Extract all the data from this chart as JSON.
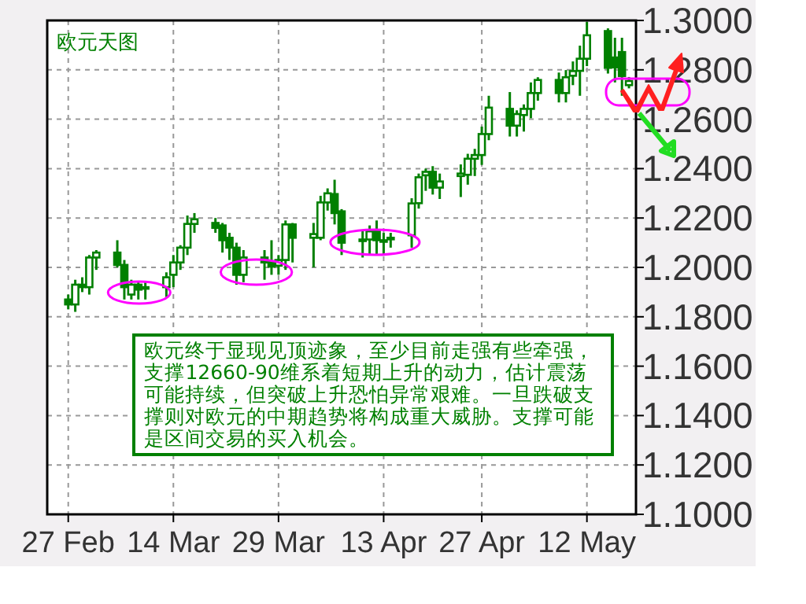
{
  "chart_data": {
    "type": "candlestick",
    "title": "欧元天图",
    "annotations": [
      "欧元终于显现见顶迹象，至少目前走强有些牵强，支撑12660-90维系着短期上升的动力，估计震荡可能持续，但突破上升恐怕异常艰难。一旦跌破支撑则对欧元的中期趋势将构成重大威胁。支撑可能是区间交易的买入机会。"
    ],
    "color": "#008000",
    "grid": true,
    "x": [
      "--02-27",
      "--02-28",
      "--03-01",
      "--03-02",
      "--03-03",
      "--03-06",
      "--03-07",
      "--03-08",
      "--03-09",
      "--03-10",
      "--03-13",
      "--03-14",
      "--03-15",
      "--03-16",
      "--03-17",
      "--03-20",
      "--03-21",
      "--03-22",
      "--03-23",
      "--03-24",
      "--03-27",
      "--03-28",
      "--03-29",
      "--03-30",
      "--03-31",
      "--04-03",
      "--04-04",
      "--04-05",
      "--04-06",
      "--04-07",
      "--04-10",
      "--04-11",
      "--04-12",
      "--04-13",
      "--04-14",
      "--04-17",
      "--04-18",
      "--04-19",
      "--04-20",
      "--04-21",
      "--04-24",
      "--04-25",
      "--04-26",
      "--04-27",
      "--04-28",
      "--05-01",
      "--05-02",
      "--05-03",
      "--05-04",
      "--05-05",
      "--05-08",
      "--05-09",
      "--05-10",
      "--05-11",
      "--05-12",
      "--05-15",
      "--05-16",
      "--05-17",
      "--05-18"
    ],
    "ohlc": [
      [
        1.187,
        1.189,
        1.183,
        1.185
      ],
      [
        1.185,
        1.195,
        1.182,
        1.193
      ],
      [
        1.193,
        1.196,
        1.19,
        1.192
      ],
      [
        1.192,
        1.205,
        1.189,
        1.204
      ],
      [
        1.204,
        1.207,
        1.199,
        1.206
      ],
      [
        1.206,
        1.211,
        1.2,
        1.201
      ],
      [
        1.201,
        1.203,
        1.187,
        1.192
      ],
      [
        1.189,
        1.195,
        1.187,
        1.193
      ],
      [
        1.193,
        1.194,
        1.187,
        1.191
      ],
      [
        1.192,
        1.194,
        1.187,
        1.1915
      ],
      [
        1.192,
        1.198,
        1.188,
        1.196
      ],
      [
        1.197,
        1.205,
        1.192,
        1.202
      ],
      [
        1.202,
        1.209,
        1.199,
        1.208
      ],
      [
        1.208,
        1.221,
        1.205,
        1.2176
      ],
      [
        1.2176,
        1.222,
        1.214,
        1.2195
      ],
      [
        1.218,
        1.22,
        1.214,
        1.216
      ],
      [
        1.217,
        1.218,
        1.206,
        1.211
      ],
      [
        1.212,
        1.214,
        1.203,
        1.208
      ],
      [
        1.208,
        1.21,
        1.193,
        1.197
      ],
      [
        1.197,
        1.207,
        1.194,
        1.204
      ],
      [
        1.204,
        1.207,
        1.195,
        1.202
      ],
      [
        1.2025,
        1.211,
        1.197,
        1.2003
      ],
      [
        1.2007,
        1.205,
        1.197,
        1.203
      ],
      [
        1.203,
        1.219,
        1.199,
        1.2174
      ],
      [
        1.2174,
        1.218,
        1.202,
        1.212
      ],
      [
        1.212,
        1.218,
        1.2,
        1.2135
      ],
      [
        1.212,
        1.229,
        1.211,
        1.2263
      ],
      [
        1.2263,
        1.232,
        1.223,
        1.23
      ],
      [
        1.2297,
        1.2355,
        1.2174,
        1.222
      ],
      [
        1.2227,
        1.2236,
        1.205,
        1.21
      ],
      [
        1.2113,
        1.215,
        1.204,
        1.211
      ],
      [
        1.2113,
        1.217,
        1.205,
        1.2146
      ],
      [
        1.2146,
        1.219,
        1.205,
        1.211
      ],
      [
        1.211,
        1.214,
        1.205,
        1.2105
      ],
      [
        1.212,
        1.214,
        1.208,
        1.2115
      ],
      [
        1.213,
        1.228,
        1.208,
        1.2259
      ],
      [
        1.226,
        1.238,
        1.2238,
        1.2365
      ],
      [
        1.2373,
        1.24,
        1.231,
        1.2387
      ],
      [
        1.2387,
        1.241,
        1.2295,
        1.2323
      ],
      [
        1.2323,
        1.238,
        1.2277,
        1.2348
      ],
      [
        1.237,
        1.2417,
        1.2285,
        1.238
      ],
      [
        1.2375,
        1.246,
        1.2335,
        1.244
      ],
      [
        1.244,
        1.248,
        1.237,
        1.2455
      ],
      [
        1.2455,
        1.257,
        1.2415,
        1.254
      ],
      [
        1.254,
        1.2695,
        1.2515,
        1.2647
      ],
      [
        1.2642,
        1.271,
        1.253,
        1.2574
      ],
      [
        1.2574,
        1.2636,
        1.253,
        1.2621
      ],
      [
        1.2617,
        1.266,
        1.255,
        1.2642
      ],
      [
        1.2642,
        1.2749,
        1.2604,
        1.2706
      ],
      [
        1.2706,
        1.277,
        1.2675,
        1.2759
      ],
      [
        1.2759,
        1.2789,
        1.2668,
        1.2706
      ],
      [
        1.2706,
        1.2799,
        1.2668,
        1.277
      ],
      [
        1.2776,
        1.2834,
        1.2738,
        1.2795
      ],
      [
        1.2796,
        1.2898,
        1.2695,
        1.2845
      ],
      [
        1.2845,
        1.2994,
        1.2815,
        1.294
      ],
      [
        1.2957,
        1.2968,
        1.2785,
        1.2808
      ],
      [
        1.285,
        1.293,
        1.2749,
        1.281
      ],
      [
        1.2872,
        1.293,
        1.2695,
        1.2775
      ],
      [
        1.2738,
        1.2771,
        1.2725,
        1.2755
      ]
    ],
    "xlim": [
      "--02-24",
      "--05-19"
    ],
    "ylim": [
      1.1,
      1.3
    ],
    "xticks": [
      {
        "value": "--02-27",
        "label": "27 Feb"
      },
      {
        "value": "--03-14",
        "label": "14 Mar"
      },
      {
        "value": "--03-29",
        "label": "29 Mar"
      },
      {
        "value": "--04-13",
        "label": "13 Apr"
      },
      {
        "value": "--04-27",
        "label": "27 Apr"
      },
      {
        "value": "--05-12",
        "label": "12 May"
      }
    ],
    "yticks": [
      {
        "value": 1.1,
        "label": "1.1000"
      },
      {
        "value": 1.12,
        "label": "1.1200"
      },
      {
        "value": 1.14,
        "label": "1.1400"
      },
      {
        "value": 1.16,
        "label": "1.1600"
      },
      {
        "value": 1.18,
        "label": "1.1800"
      },
      {
        "value": 1.2,
        "label": "1.2000"
      },
      {
        "value": 1.22,
        "label": "1.2200"
      },
      {
        "value": 1.24,
        "label": "1.2400"
      },
      {
        "value": 1.26,
        "label": "1.2600"
      },
      {
        "value": 1.28,
        "label": "1.2800"
      },
      {
        "value": 1.3,
        "label": "1.3000"
      }
    ]
  }
}
